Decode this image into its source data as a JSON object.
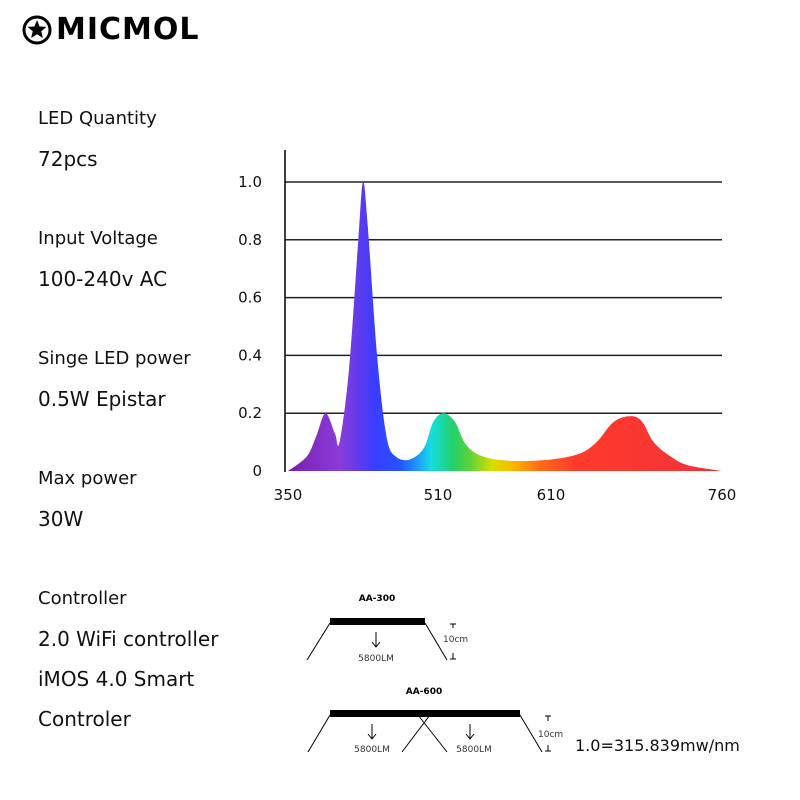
{
  "brand": {
    "name": "MICMOL",
    "logo_icon": "star-gear-icon"
  },
  "specs": [
    {
      "label": "LED Quantity",
      "value": "72pcs"
    },
    {
      "label": "Input Voltage",
      "value": "100-240v AC"
    },
    {
      "label": "Singe LED power",
      "value": "0.5W Epistar"
    },
    {
      "label": "Max power",
      "value": "30W"
    },
    {
      "label": "Controller",
      "value": "2.0 WiFi controller",
      "value2": "iMOS 4.0 Smart",
      "value3": "Controler"
    }
  ],
  "chart_data": {
    "type": "area",
    "title": "",
    "xlabel": "",
    "ylabel": "",
    "x_ticks": [
      "350",
      "510",
      "610",
      "760"
    ],
    "y_ticks": [
      "0",
      "0.2",
      "0.4",
      "0.6",
      "0.8",
      "1.0"
    ],
    "ylim": [
      0,
      1.1
    ],
    "grid": true,
    "series": [
      {
        "points": [
          [
            350,
            0.0
          ],
          [
            370,
            0.05
          ],
          [
            380,
            0.12
          ],
          [
            390,
            0.2
          ],
          [
            400,
            0.13
          ],
          [
            405,
            0.1
          ],
          [
            415,
            0.35
          ],
          [
            425,
            0.8
          ],
          [
            430,
            1.0
          ],
          [
            435,
            0.85
          ],
          [
            445,
            0.4
          ],
          [
            455,
            0.12
          ],
          [
            465,
            0.05
          ],
          [
            480,
            0.04
          ],
          [
            495,
            0.08
          ],
          [
            505,
            0.17
          ],
          [
            515,
            0.2
          ],
          [
            525,
            0.17
          ],
          [
            535,
            0.09
          ],
          [
            550,
            0.05
          ],
          [
            575,
            0.035
          ],
          [
            610,
            0.04
          ],
          [
            635,
            0.06
          ],
          [
            650,
            0.1
          ],
          [
            665,
            0.17
          ],
          [
            680,
            0.19
          ],
          [
            690,
            0.17
          ],
          [
            700,
            0.1
          ],
          [
            715,
            0.05
          ],
          [
            730,
            0.02
          ],
          [
            760,
            0.0
          ]
        ]
      }
    ]
  },
  "diagrams": [
    {
      "name": "AA-300",
      "lumens": [
        "5800LM"
      ],
      "distance": "10cm"
    },
    {
      "name": "AA-600",
      "lumens": [
        "5800LM",
        "5800LM"
      ],
      "distance": "10cm"
    }
  ],
  "note": "1.0=315.839mw/nm"
}
